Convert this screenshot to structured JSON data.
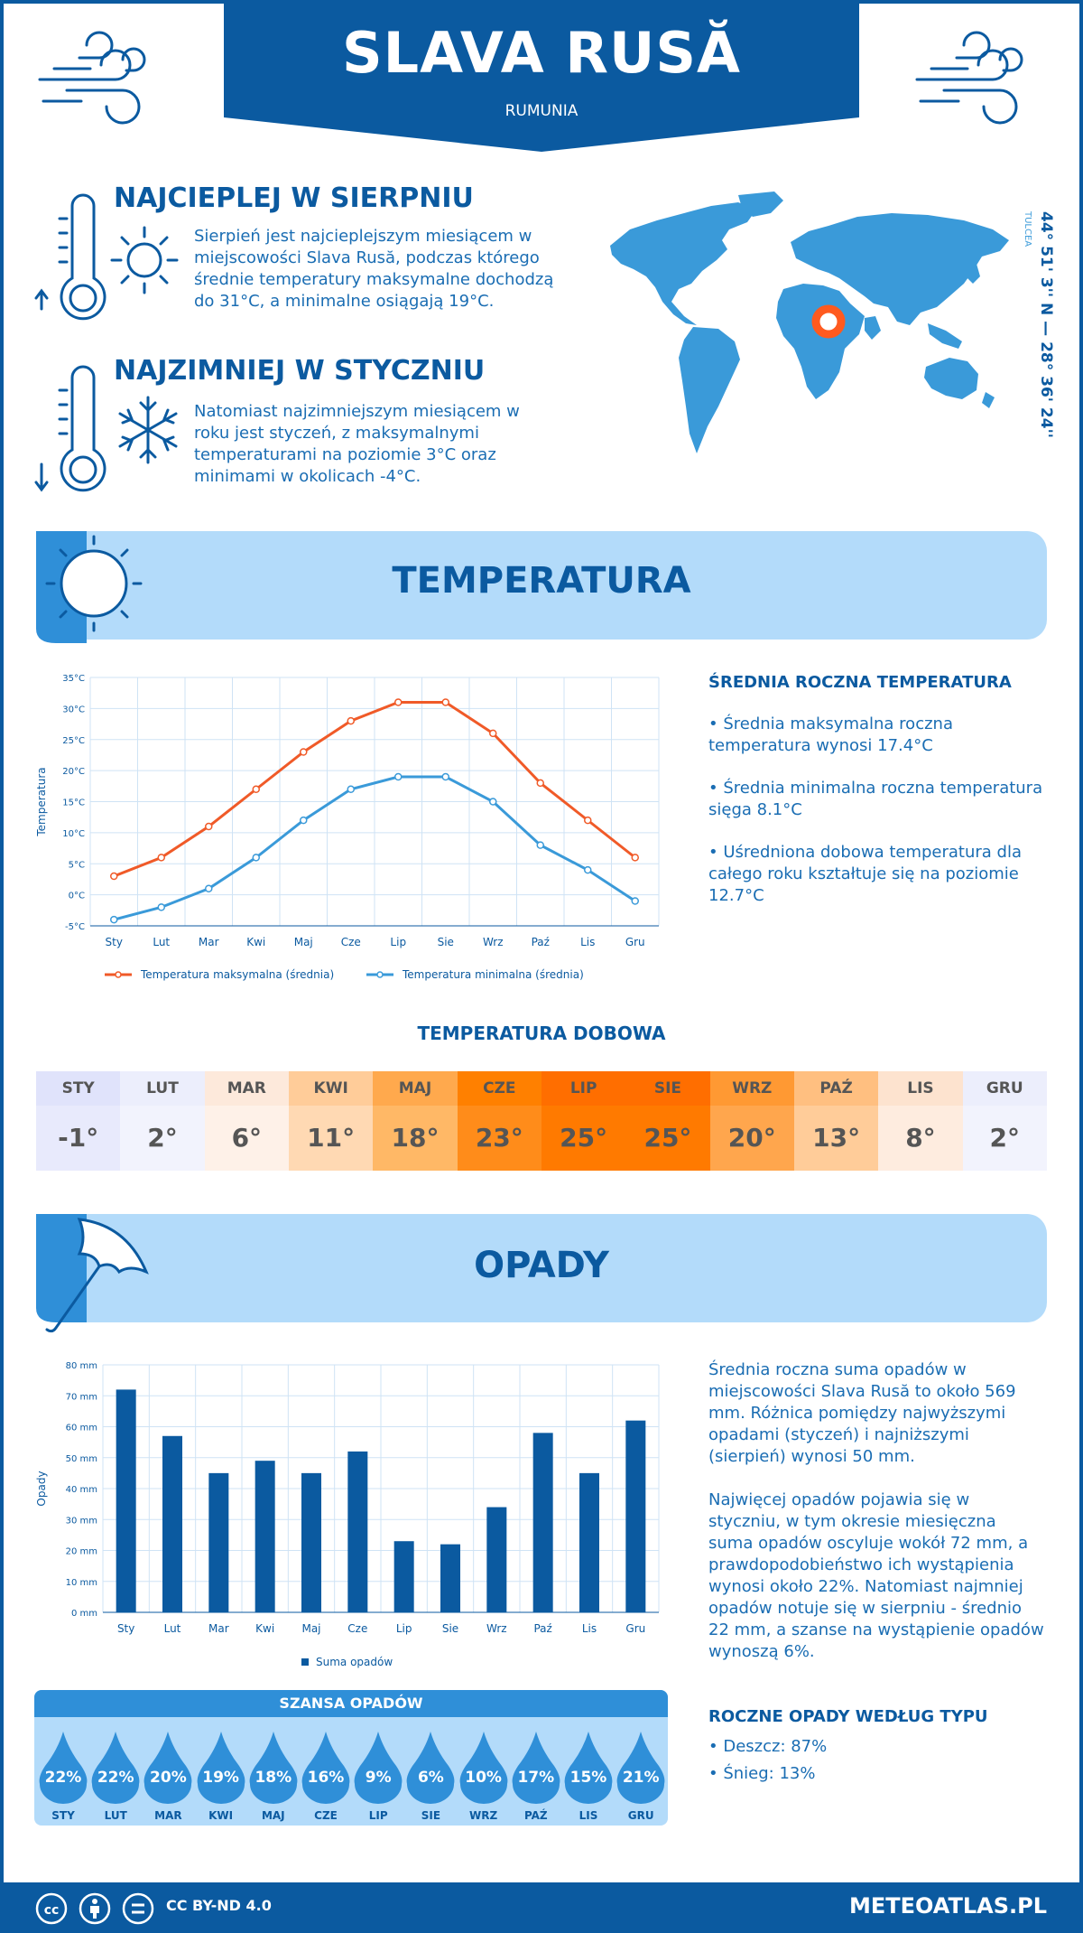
{
  "header": {
    "title": "SLAVA RUSĂ",
    "subtitle": "RUMUNIA"
  },
  "coords": {
    "text": "44° 51' 3'' N — 28° 36' 24'' E",
    "region": "TULCEA"
  },
  "warmest": {
    "title": "NAJCIEPLEJ W SIERPNIU",
    "text": "Sierpień jest najcieplejszym miesiącem w miejscowości Slava Rusă, podczas którego średnie temperatury maksymalne dochodzą do 31°C, a minimalne osiągają 19°C."
  },
  "coldest": {
    "title": "NAJZIMNIEJ W STYCZNIU",
    "text": "Natomiast najzimniejszym miesiącem w roku jest styczeń, z maksymalnymi temperaturami na poziomie 3°C oraz minimami w okolicach -4°C."
  },
  "temperature_section": {
    "title": "TEMPERATURA",
    "side_title": "ŚREDNIA ROCZNA TEMPERATURA",
    "bullet1": "• Średnia maksymalna roczna temperatura wynosi 17.4°C",
    "bullet2": "• Średnia minimalna roczna temperatura sięga 8.1°C",
    "bullet3": "• Uśredniona dobowa temperatura dla całego roku kształtuje się na poziomie 12.7°C"
  },
  "daily_title": "TEMPERATURA DOBOWA",
  "daily": [
    {
      "m": "STY",
      "v": "-1°",
      "hc": "#e0e3fb",
      "vc": "#e8eafc"
    },
    {
      "m": "LUT",
      "v": "2°",
      "hc": "#eceefc",
      "vc": "#f2f3fd"
    },
    {
      "m": "MAR",
      "v": "6°",
      "hc": "#fde9db",
      "vc": "#fef1e8"
    },
    {
      "m": "KWI",
      "v": "11°",
      "hc": "#ffcc99",
      "vc": "#ffd9b3"
    },
    {
      "m": "MAJ",
      "v": "18°",
      "hc": "#ffa94d",
      "vc": "#ffb866"
    },
    {
      "m": "CZE",
      "v": "23°",
      "hc": "#ff8000",
      "vc": "#ff8c1a"
    },
    {
      "m": "LIP",
      "v": "25°",
      "hc": "#ff6e00",
      "vc": "#ff7a00"
    },
    {
      "m": "SIE",
      "v": "25°",
      "hc": "#ff6e00",
      "vc": "#ff7a00"
    },
    {
      "m": "WRZ",
      "v": "20°",
      "hc": "#ff9933",
      "vc": "#ffa64d"
    },
    {
      "m": "PAŹ",
      "v": "13°",
      "hc": "#ffbf80",
      "vc": "#ffcc99"
    },
    {
      "m": "LIS",
      "v": "8°",
      "hc": "#fde3cf",
      "vc": "#feecdf"
    },
    {
      "m": "GRU",
      "v": "2°",
      "hc": "#eceefc",
      "vc": "#f2f3fd"
    }
  ],
  "precip_section": {
    "title": "OPADY",
    "text1": "Średnia roczna suma opadów w miejscowości Slava Rusă to około 569 mm. Różnica pomiędzy najwyższymi opadami (styczeń) i najniższymi (sierpień) wynosi 50 mm.",
    "text2": "Najwięcej opadów pojawia się w styczniu, w tym okresie miesięczna suma opadów oscyluje wokół 72 mm, a prawdopodobieństwo ich wystąpienia wynosi około 22%. Natomiast najmniej opadów notuje się w sierpniu - średnio 22 mm, a szanse na wystąpienie opadów wynoszą 6%.",
    "type_title": "ROCZNE OPADY WEDŁUG TYPU",
    "rain": "• Deszcz: 87%",
    "snow": "• Śnieg: 13%"
  },
  "chance": {
    "title": "SZANSA OPADÓW",
    "items": [
      {
        "m": "STY",
        "p": "22%"
      },
      {
        "m": "LUT",
        "p": "22%"
      },
      {
        "m": "MAR",
        "p": "20%"
      },
      {
        "m": "KWI",
        "p": "19%"
      },
      {
        "m": "MAJ",
        "p": "18%"
      },
      {
        "m": "CZE",
        "p": "16%"
      },
      {
        "m": "LIP",
        "p": "9%"
      },
      {
        "m": "SIE",
        "p": "6%"
      },
      {
        "m": "WRZ",
        "p": "10%"
      },
      {
        "m": "PAŹ",
        "p": "17%"
      },
      {
        "m": "LIS",
        "p": "15%"
      },
      {
        "m": "GRU",
        "p": "21%"
      }
    ]
  },
  "footer": {
    "license": "CC BY-ND 4.0",
    "site": "METEOATLAS.PL"
  },
  "colors": {
    "primary": "#0b5aa0",
    "light": "#b3dbfa",
    "max_line": "#f05a28",
    "min_line": "#3a9ad9",
    "bar": "#0b5aa0"
  },
  "chart_data": [
    {
      "type": "line",
      "categories": [
        "Sty",
        "Lut",
        "Mar",
        "Kwi",
        "Maj",
        "Cze",
        "Lip",
        "Sie",
        "Wrz",
        "Paź",
        "Lis",
        "Gru"
      ],
      "ylabel": "Temperatura",
      "ylim": [
        -5,
        35
      ],
      "yticks": [
        "-5°C",
        "0°C",
        "5°C",
        "10°C",
        "15°C",
        "20°C",
        "25°C",
        "30°C",
        "35°C"
      ],
      "series": [
        {
          "name": "Temperatura maksymalna (średnia)",
          "values": [
            3,
            6,
            11,
            17,
            23,
            28,
            31,
            31,
            26,
            18,
            12,
            6
          ]
        },
        {
          "name": "Temperatura minimalna (średnia)",
          "values": [
            -4,
            -2,
            1,
            6,
            12,
            17,
            19,
            19,
            15,
            8,
            4,
            -1
          ]
        }
      ],
      "grid": true,
      "legend": "bottom"
    },
    {
      "type": "bar",
      "categories": [
        "Sty",
        "Lut",
        "Mar",
        "Kwi",
        "Maj",
        "Cze",
        "Lip",
        "Sie",
        "Wrz",
        "Paź",
        "Lis",
        "Gru"
      ],
      "ylabel": "Opady",
      "ylim": [
        0,
        80
      ],
      "yticks": [
        "0 mm",
        "10 mm",
        "20 mm",
        "30 mm",
        "40 mm",
        "50 mm",
        "60 mm",
        "70 mm",
        "80 mm"
      ],
      "series": [
        {
          "name": "Suma opadów",
          "values": [
            72,
            57,
            45,
            49,
            45,
            52,
            23,
            22,
            34,
            58,
            45,
            62
          ]
        }
      ],
      "grid": true,
      "legend": "bottom"
    }
  ]
}
